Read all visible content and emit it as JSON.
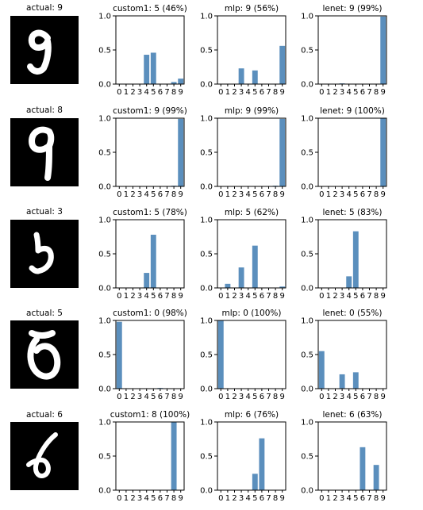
{
  "chart_data": {
    "type": "bar",
    "categories": [
      "0",
      "1",
      "2",
      "3",
      "4",
      "5",
      "6",
      "7",
      "8",
      "9"
    ],
    "ylim": [
      0,
      1.0
    ],
    "yticks": [
      "0.0",
      "0.5",
      "1.0"
    ],
    "bar_color": "#5b8fbd",
    "rows": [
      {
        "image_title": "actual: 9",
        "image_icon": "handwritten-digit-9",
        "panels": [
          {
            "title": "custom1: 5 (46%)",
            "values": [
              0,
              0,
              0,
              0,
              0.43,
              0.46,
              0,
              0,
              0.03,
              0.08
            ]
          },
          {
            "title": "mlp: 9 (56%)",
            "values": [
              0,
              0,
              0,
              0.23,
              0,
              0.2,
              0,
              0,
              0,
              0.56
            ]
          },
          {
            "title": "lenet: 9 (99%)",
            "values": [
              0,
              0,
              0,
              0.01,
              0,
              0,
              0,
              0,
              0,
              0.99
            ]
          }
        ]
      },
      {
        "image_title": "actual: 8",
        "image_icon": "handwritten-digit-8",
        "panels": [
          {
            "title": "custom1: 9 (99%)",
            "values": [
              0,
              0,
              0,
              0,
              0,
              0,
              0,
              0,
              0.01,
              0.99
            ]
          },
          {
            "title": "mlp: 9 (99%)",
            "values": [
              0,
              0,
              0,
              0,
              0,
              0,
              0,
              0,
              0.01,
              0.99
            ]
          },
          {
            "title": "lenet: 9 (100%)",
            "values": [
              0,
              0,
              0,
              0,
              0,
              0,
              0,
              0,
              0,
              1.0
            ]
          }
        ]
      },
      {
        "image_title": "actual: 3",
        "image_icon": "handwritten-digit-3",
        "panels": [
          {
            "title": "custom1: 5 (78%)",
            "values": [
              0,
              0,
              0,
              0,
              0.22,
              0.78,
              0,
              0,
              0,
              0
            ]
          },
          {
            "title": "mlp: 5 (62%)",
            "values": [
              0,
              0.06,
              0,
              0.3,
              0,
              0.62,
              0,
              0,
              0,
              0.02
            ]
          },
          {
            "title": "lenet: 5 (83%)",
            "values": [
              0,
              0,
              0,
              0,
              0.17,
              0.83,
              0,
              0,
              0,
              0
            ]
          }
        ]
      },
      {
        "image_title": "actual: 5",
        "image_icon": "handwritten-digit-5",
        "panels": [
          {
            "title": "custom1: 0 (98%)",
            "values": [
              0.98,
              0,
              0,
              0,
              0,
              0,
              0.01,
              0,
              0,
              0
            ]
          },
          {
            "title": "mlp: 0 (100%)",
            "values": [
              1.0,
              0,
              0,
              0,
              0,
              0,
              0,
              0,
              0,
              0
            ]
          },
          {
            "title": "lenet: 0 (55%)",
            "values": [
              0.55,
              0,
              0,
              0.21,
              0,
              0.24,
              0,
              0,
              0,
              0
            ]
          }
        ]
      },
      {
        "image_title": "actual: 6",
        "image_icon": "handwritten-digit-6",
        "panels": [
          {
            "title": "custom1: 8 (100%)",
            "values": [
              0,
              0,
              0,
              0,
              0,
              0,
              0,
              0,
              1.0,
              0
            ]
          },
          {
            "title": "mlp: 6 (76%)",
            "values": [
              0,
              0,
              0,
              0,
              0,
              0.24,
              0.76,
              0,
              0,
              0
            ]
          },
          {
            "title": "lenet: 6 (63%)",
            "values": [
              0,
              0,
              0,
              0,
              0,
              0,
              0.63,
              0,
              0.37,
              0
            ]
          }
        ]
      }
    ]
  }
}
